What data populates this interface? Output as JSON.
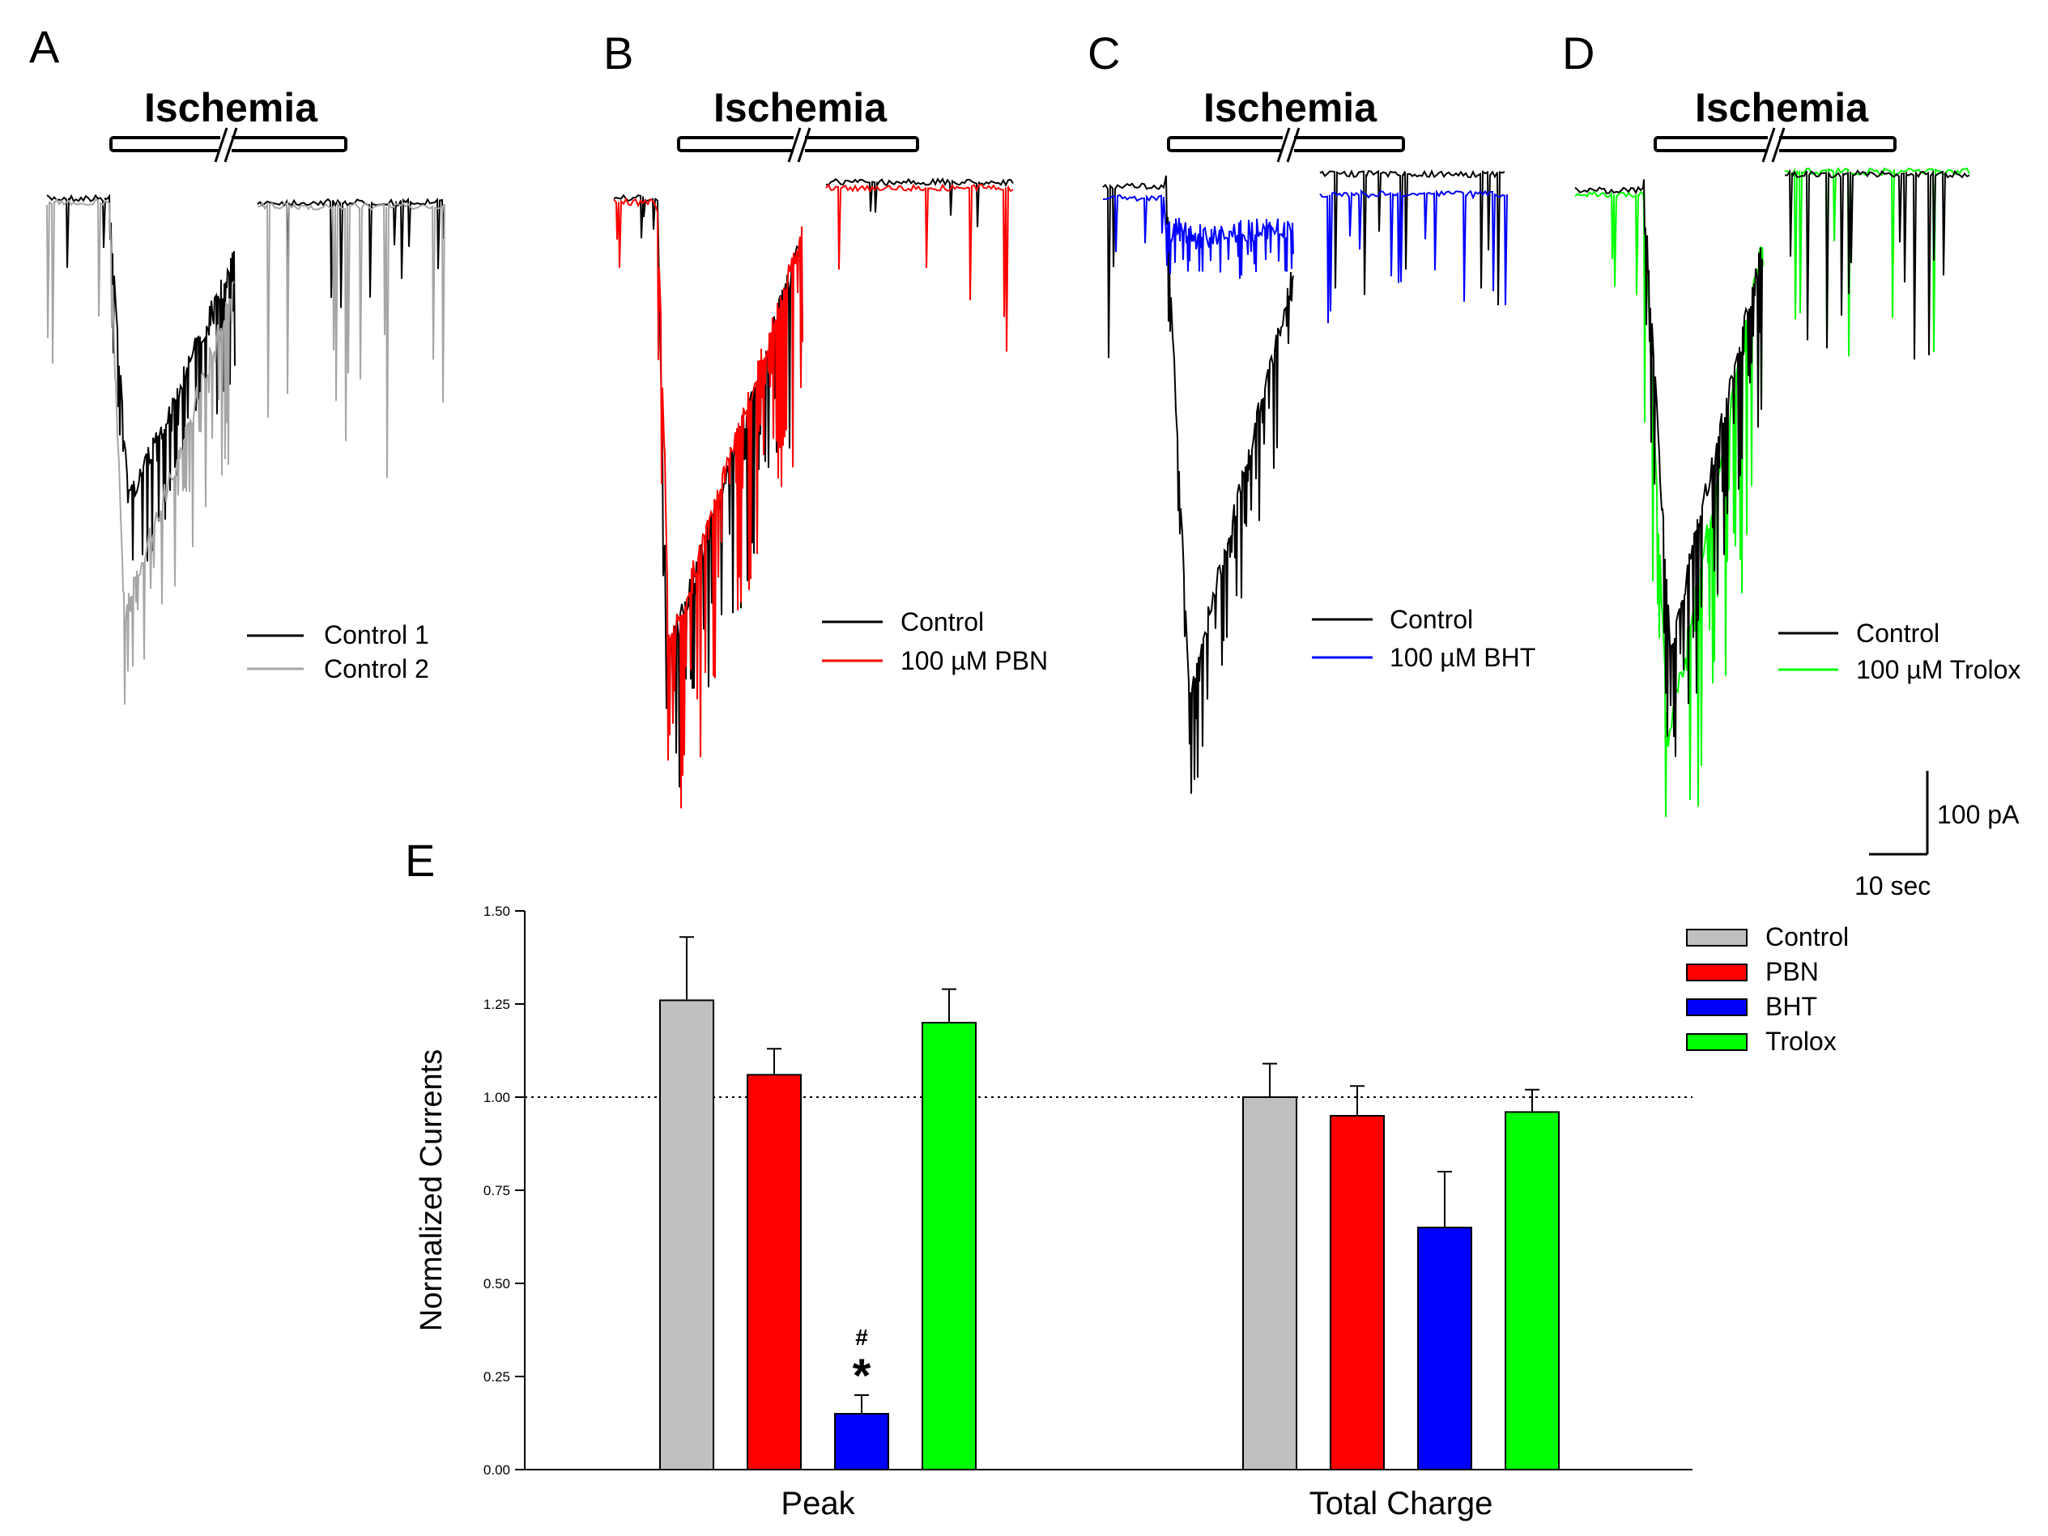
{
  "panels": [
    {
      "letter": "A",
      "stimulus": "Ischemia",
      "legend": [
        "Control 1",
        "Control 2"
      ],
      "colors": [
        "#000000",
        "#a6a6a6"
      ]
    },
    {
      "letter": "B",
      "stimulus": "Ischemia",
      "legend": [
        "Control",
        "100 µM PBN"
      ],
      "colors": [
        "#000000",
        "#ff0000"
      ]
    },
    {
      "letter": "C",
      "stimulus": "Ischemia",
      "legend": [
        "Control",
        "100 µM BHT"
      ],
      "colors": [
        "#000000",
        "#0000ff"
      ]
    },
    {
      "letter": "D",
      "stimulus": "Ischemia",
      "legend": [
        "Control",
        "100 µM Trolox"
      ],
      "colors": [
        "#000000",
        "#00ff00"
      ]
    }
  ],
  "scale_bar": {
    "vertical": "100 pA",
    "horizontal": "10 sec"
  },
  "panel_e_letter": "E",
  "chart_data": {
    "type": "bar",
    "title": "",
    "xlabel": "",
    "ylabel": "Normalized Currents",
    "ylim": [
      0,
      1.5
    ],
    "yticks": [
      "0.00",
      "0.25",
      "0.50",
      "0.75",
      "1.00",
      "1.25",
      "1.50"
    ],
    "reference_line": 1.0,
    "categories": [
      "Peak",
      "Total Charge"
    ],
    "series": [
      {
        "name": "Control",
        "color": "#c0c0c0",
        "values": [
          1.26,
          1.0
        ],
        "errors": [
          0.17,
          0.09
        ]
      },
      {
        "name": "PBN",
        "color": "#ff0000",
        "values": [
          1.06,
          0.95
        ],
        "errors": [
          0.07,
          0.08
        ]
      },
      {
        "name": "BHT",
        "color": "#0000ff",
        "values": [
          0.15,
          0.65
        ],
        "errors": [
          0.05,
          0.15
        ]
      },
      {
        "name": "Trolox",
        "color": "#00ff00",
        "values": [
          1.2,
          0.96
        ],
        "errors": [
          0.09,
          0.06
        ]
      }
    ],
    "annotations": [
      {
        "series": "BHT",
        "category": "Peak",
        "marks": [
          "#",
          "*"
        ]
      }
    ],
    "legend_position": "top-right"
  }
}
